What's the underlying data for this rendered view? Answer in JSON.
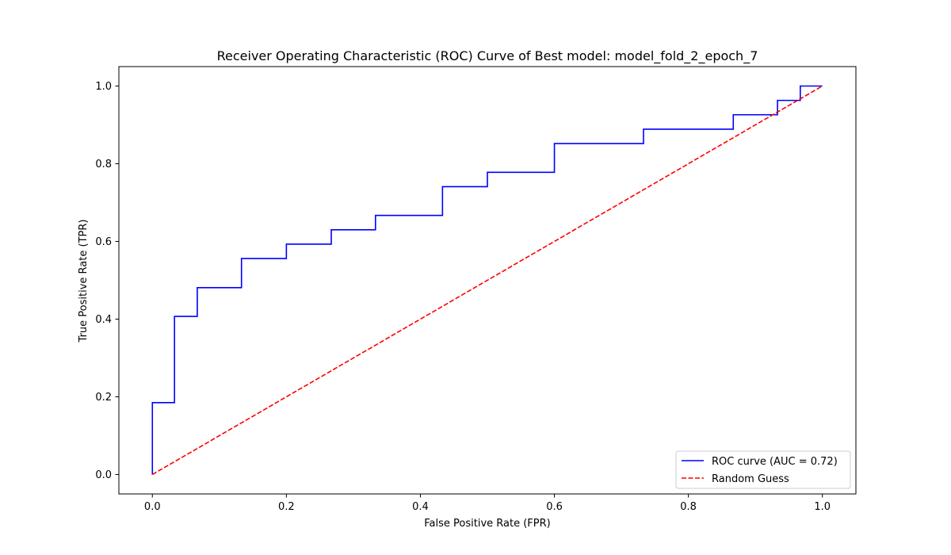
{
  "chart_data": {
    "type": "line",
    "title": "Receiver Operating Characteristic (ROC) Curve of Best model: model_fold_2_epoch_7",
    "xlabel": "False Positive Rate (FPR)",
    "ylabel": "True Positive Rate (TPR)",
    "xlim": [
      -0.05,
      1.05
    ],
    "ylim": [
      -0.05,
      1.05
    ],
    "xticks": [
      0.0,
      0.2,
      0.4,
      0.6,
      0.8,
      1.0
    ],
    "xtick_labels": [
      "0.0",
      "0.2",
      "0.4",
      "0.6",
      "0.8",
      "1.0"
    ],
    "yticks": [
      0.0,
      0.2,
      0.4,
      0.6,
      0.8,
      1.0
    ],
    "ytick_labels": [
      "0.0",
      "0.2",
      "0.4",
      "0.6",
      "0.8",
      "1.0"
    ],
    "grid": false,
    "legend_position": "lower right",
    "series": [
      {
        "name": "ROC curve (AUC = 0.72)",
        "color": "#0000ff",
        "style": "solid",
        "x": [
          0.0,
          0.0,
          0.033,
          0.033,
          0.067,
          0.067,
          0.133,
          0.133,
          0.2,
          0.2,
          0.267,
          0.267,
          0.333,
          0.333,
          0.433,
          0.433,
          0.5,
          0.5,
          0.6,
          0.6,
          0.733,
          0.733,
          0.867,
          0.867,
          0.933,
          0.933,
          0.967,
          0.967,
          1.0
        ],
        "y": [
          0.0,
          0.185,
          0.185,
          0.407,
          0.407,
          0.481,
          0.481,
          0.556,
          0.556,
          0.593,
          0.593,
          0.63,
          0.63,
          0.667,
          0.667,
          0.741,
          0.741,
          0.778,
          0.778,
          0.852,
          0.852,
          0.889,
          0.889,
          0.926,
          0.926,
          0.963,
          0.963,
          1.0,
          1.0
        ]
      },
      {
        "name": "Random Guess",
        "color": "#ff0000",
        "style": "dashed",
        "x": [
          0.0,
          1.0
        ],
        "y": [
          0.0,
          1.0
        ]
      }
    ]
  }
}
